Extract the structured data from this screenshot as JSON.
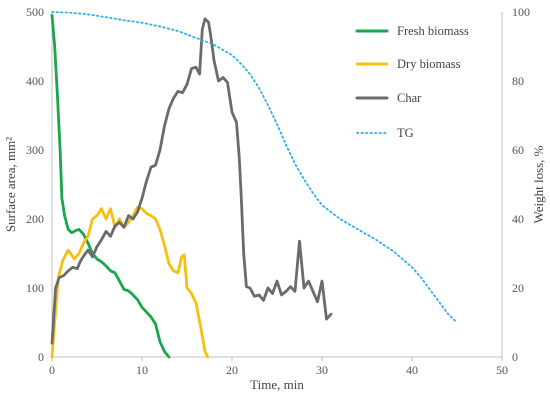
{
  "chart_data": {
    "type": "line",
    "xlabel": "Time, min",
    "ylabel_left": "Surface area, mm²",
    "ylabel_right": "Weight loss, %",
    "xlim": [
      0,
      50
    ],
    "ylim_left": [
      0,
      500
    ],
    "ylim_right": [
      0,
      100
    ],
    "x_ticks": [
      0,
      10,
      20,
      30,
      40,
      50
    ],
    "y_left_ticks": [
      0,
      100,
      200,
      300,
      400,
      500
    ],
    "y_right_ticks": [
      0,
      20,
      40,
      60,
      80,
      100
    ],
    "grid": false,
    "legend_position": "top-right",
    "series": [
      {
        "name": "Fresh biomass",
        "axis": "left",
        "color": "#1aa64b",
        "style": "solid",
        "points": [
          [
            0,
            495
          ],
          [
            0.3,
            450
          ],
          [
            0.6,
            380
          ],
          [
            0.9,
            300
          ],
          [
            1.1,
            230
          ],
          [
            1.4,
            205
          ],
          [
            1.8,
            185
          ],
          [
            2.2,
            180
          ],
          [
            2.6,
            183
          ],
          [
            3.0,
            185
          ],
          [
            3.5,
            178
          ],
          [
            4.0,
            165
          ],
          [
            4.5,
            150
          ],
          [
            5.0,
            142
          ],
          [
            5.5,
            138
          ],
          [
            6.0,
            132
          ],
          [
            6.5,
            125
          ],
          [
            7.0,
            122
          ],
          [
            7.5,
            110
          ],
          [
            8.0,
            98
          ],
          [
            8.5,
            96
          ],
          [
            9.0,
            90
          ],
          [
            9.5,
            83
          ],
          [
            10.0,
            72
          ],
          [
            10.5,
            65
          ],
          [
            11.0,
            58
          ],
          [
            11.5,
            48
          ],
          [
            12.0,
            22
          ],
          [
            12.5,
            8
          ],
          [
            13.0,
            0
          ]
        ]
      },
      {
        "name": "Dry biomass",
        "axis": "left",
        "color": "#f5c00f",
        "style": "solid",
        "points": [
          [
            0,
            0
          ],
          [
            0.3,
            50
          ],
          [
            0.7,
            115
          ],
          [
            1.2,
            140
          ],
          [
            1.8,
            155
          ],
          [
            2.5,
            142
          ],
          [
            3.0,
            150
          ],
          [
            3.5,
            165
          ],
          [
            4.0,
            175
          ],
          [
            4.5,
            200
          ],
          [
            5.0,
            205
          ],
          [
            5.5,
            215
          ],
          [
            6.0,
            200
          ],
          [
            6.5,
            215
          ],
          [
            7.0,
            188
          ],
          [
            7.5,
            200
          ],
          [
            8.0,
            188
          ],
          [
            8.5,
            195
          ],
          [
            9.0,
            205
          ],
          [
            9.5,
            217
          ],
          [
            10.0,
            215
          ],
          [
            10.5,
            208
          ],
          [
            11.0,
            205
          ],
          [
            11.5,
            200
          ],
          [
            12.0,
            185
          ],
          [
            12.5,
            162
          ],
          [
            13.0,
            135
          ],
          [
            13.5,
            125
          ],
          [
            14.0,
            122
          ],
          [
            14.4,
            145
          ],
          [
            14.7,
            148
          ],
          [
            15.0,
            100
          ],
          [
            15.5,
            92
          ],
          [
            16.0,
            78
          ],
          [
            16.5,
            45
          ],
          [
            17.0,
            8
          ],
          [
            17.3,
            0
          ]
        ]
      },
      {
        "name": "Char",
        "axis": "left",
        "color": "#6b6b6b",
        "style": "solid",
        "points": [
          [
            0,
            20
          ],
          [
            0.4,
            100
          ],
          [
            0.8,
            115
          ],
          [
            1.3,
            118
          ],
          [
            1.8,
            125
          ],
          [
            2.3,
            130
          ],
          [
            2.8,
            128
          ],
          [
            3.2,
            140
          ],
          [
            3.6,
            148
          ],
          [
            4.0,
            155
          ],
          [
            4.5,
            145
          ],
          [
            5.0,
            160
          ],
          [
            5.5,
            170
          ],
          [
            6.0,
            182
          ],
          [
            6.5,
            175
          ],
          [
            7.0,
            190
          ],
          [
            7.5,
            195
          ],
          [
            8.0,
            188
          ],
          [
            8.5,
            205
          ],
          [
            9.0,
            200
          ],
          [
            9.5,
            210
          ],
          [
            10.0,
            230
          ],
          [
            10.5,
            255
          ],
          [
            11.0,
            275
          ],
          [
            11.5,
            278
          ],
          [
            12.0,
            300
          ],
          [
            12.5,
            335
          ],
          [
            13.0,
            360
          ],
          [
            13.5,
            375
          ],
          [
            14.0,
            385
          ],
          [
            14.5,
            383
          ],
          [
            15.0,
            395
          ],
          [
            15.5,
            418
          ],
          [
            16.0,
            420
          ],
          [
            16.4,
            410
          ],
          [
            16.7,
            475
          ],
          [
            17.0,
            490
          ],
          [
            17.4,
            485
          ],
          [
            17.7,
            460
          ],
          [
            18.0,
            430
          ],
          [
            18.5,
            400
          ],
          [
            19.0,
            405
          ],
          [
            19.5,
            398
          ],
          [
            20.0,
            355
          ],
          [
            20.5,
            340
          ],
          [
            20.8,
            290
          ],
          [
            21.0,
            240
          ],
          [
            21.3,
            150
          ],
          [
            21.6,
            102
          ],
          [
            22.0,
            100
          ],
          [
            22.5,
            88
          ],
          [
            23.0,
            90
          ],
          [
            23.5,
            82
          ],
          [
            24.0,
            100
          ],
          [
            24.5,
            92
          ],
          [
            25.0,
            110
          ],
          [
            25.5,
            90
          ],
          [
            26.0,
            95
          ],
          [
            26.5,
            102
          ],
          [
            27.0,
            95
          ],
          [
            27.5,
            168
          ],
          [
            28.0,
            100
          ],
          [
            28.5,
            110
          ],
          [
            29.0,
            95
          ],
          [
            29.5,
            80
          ],
          [
            30.0,
            110
          ],
          [
            30.5,
            55
          ],
          [
            31.0,
            62
          ]
        ]
      },
      {
        "name": "TG",
        "axis": "right",
        "color": "#2eb0e8",
        "style": "dotted",
        "points": [
          [
            0,
            100
          ],
          [
            2,
            99.8
          ],
          [
            4,
            99.3
          ],
          [
            6,
            98.5
          ],
          [
            8,
            97.6
          ],
          [
            10,
            96.9
          ],
          [
            12,
            95.8
          ],
          [
            14,
            94.5
          ],
          [
            16,
            92.5
          ],
          [
            18,
            90.5
          ],
          [
            20,
            87.5
          ],
          [
            21,
            85
          ],
          [
            22,
            82
          ],
          [
            23,
            78
          ],
          [
            24,
            73
          ],
          [
            25,
            67.5
          ],
          [
            26,
            61.5
          ],
          [
            27,
            56
          ],
          [
            28,
            51.5
          ],
          [
            29,
            47.5
          ],
          [
            30,
            44
          ],
          [
            32,
            40
          ],
          [
            34,
            37
          ],
          [
            36,
            34
          ],
          [
            38,
            30.5
          ],
          [
            40,
            26
          ],
          [
            41,
            23
          ],
          [
            42,
            19.5
          ],
          [
            43,
            16
          ],
          [
            44,
            12.5
          ],
          [
            45,
            10
          ]
        ]
      }
    ]
  }
}
